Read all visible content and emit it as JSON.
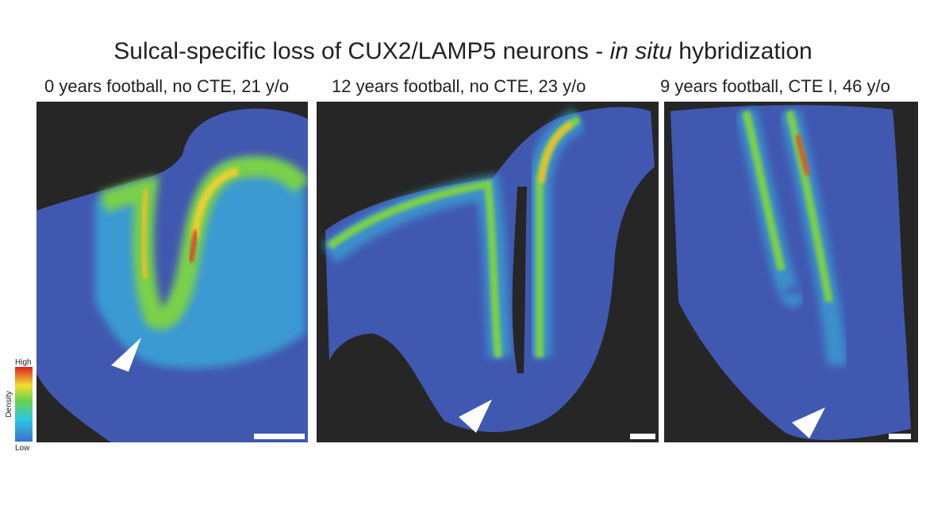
{
  "figure": {
    "title_parts": [
      "Sulcal-specific loss of CUX2/LAMP5 neurons - ",
      "in situ",
      " hybridization"
    ],
    "panels": [
      {
        "label": "0 years football, no CTE, 21 y/o"
      },
      {
        "label": "12 years football, no CTE, 23 y/o"
      },
      {
        "label": "9 years football, CTE I, 46 y/o"
      }
    ],
    "colorbar": {
      "title": "Density",
      "high": "High",
      "low": "Low"
    }
  }
}
